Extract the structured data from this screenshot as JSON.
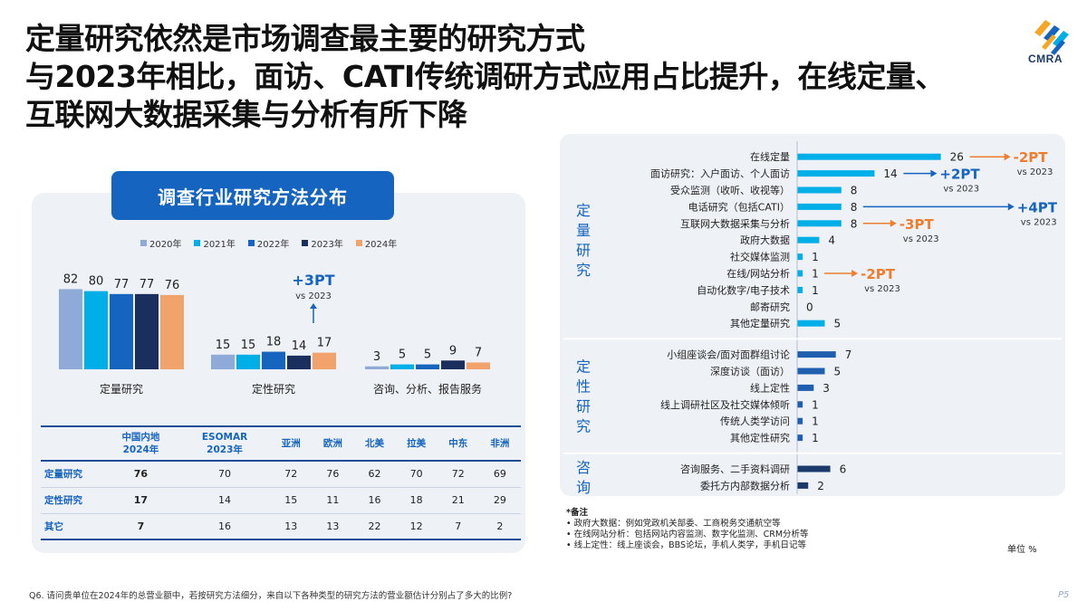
{
  "title": {
    "line1": "定量研究依然是市场调查最主要的研究方式",
    "line2": "与2023年相比，面访、CATI传统调研方式应用占比提升，在线定量、",
    "line3": "互联网大数据采集与分析有所下降"
  },
  "logo": {
    "text": "CMRA"
  },
  "left_banner": "调查行业研究方法分布",
  "colors": {
    "accent": "#1565c0",
    "y2020": "#8fa9d8",
    "y2021": "#00aee8",
    "y2022": "#1565c0",
    "y2023": "#1b2f5e",
    "y2024": "#f2a36b",
    "up": "#1565c0",
    "down": "#ef7d2e",
    "bar_online": "#00aee8",
    "bar_qual": "#1f5fb0",
    "bar_consult": "#1b3a6b"
  },
  "chart_data": [
    {
      "type": "bar",
      "categories": [
        "定量研究",
        "定性研究",
        "咨询、分析、报告服务"
      ],
      "series": [
        {
          "name": "2020年",
          "values": [
            82,
            15,
            3
          ]
        },
        {
          "name": "2021年",
          "values": [
            80,
            15,
            5
          ]
        },
        {
          "name": "2022年",
          "values": [
            77,
            18,
            5
          ]
        },
        {
          "name": "2023年",
          "values": [
            77,
            14,
            9
          ]
        },
        {
          "name": "2024年",
          "values": [
            76,
            17,
            7
          ]
        }
      ],
      "annotations": [
        {
          "category": "定性研究",
          "change": "+3PT",
          "note": "vs 2023",
          "direction": "up"
        }
      ],
      "legend": "top",
      "grid": false
    },
    {
      "type": "bar",
      "orientation": "horizontal",
      "groups": [
        {
          "label": "定量研究",
          "items": [
            {
              "label": "在线定量",
              "value": 26,
              "change": "-2PT",
              "note": "vs 2023",
              "direction": "down"
            },
            {
              "label": "面访研究：入户面访、个人面访",
              "value": 14,
              "change": "+2PT",
              "note": "vs 2023",
              "direction": "up"
            },
            {
              "label": "受众监测（收听、收视等）",
              "value": 8
            },
            {
              "label": "电话研究（包括CATI）",
              "value": 8,
              "change": "+4PT",
              "note": "vs 2023",
              "direction": "up"
            },
            {
              "label": "互联网大数据采集与分析",
              "value": 8,
              "change": "-3PT",
              "note": "vs 2023",
              "direction": "down"
            },
            {
              "label": "政府大数据",
              "value": 4
            },
            {
              "label": "社交媒体监测",
              "value": 1
            },
            {
              "label": "在线/网站分析",
              "value": 1,
              "change": "-2PT",
              "note": "vs 2023",
              "direction": "down"
            },
            {
              "label": "自动化数字/电子技术",
              "value": 1
            },
            {
              "label": "邮寄研究",
              "value": 0
            },
            {
              "label": "其他定量研究",
              "value": 5
            }
          ]
        },
        {
          "label": "定性研究",
          "items": [
            {
              "label": "小组座谈会/面对面群组讨论",
              "value": 7
            },
            {
              "label": "深度访谈（面访）",
              "value": 5
            },
            {
              "label": "线上定性",
              "value": 3
            },
            {
              "label": "线上调研社区及社交媒体倾听",
              "value": 1
            },
            {
              "label": "传统人类学访问",
              "value": 1
            },
            {
              "label": "其他定性研究",
              "value": 1
            }
          ]
        },
        {
          "label": "咨询",
          "items": [
            {
              "label": "咨询服务、二手资料调研",
              "value": 6
            },
            {
              "label": "委托方内部数据分析",
              "value": 2
            }
          ]
        }
      ],
      "unit": "单位 %"
    },
    {
      "type": "table",
      "columns": [
        "",
        "中国内地\n2024年",
        "ESOMAR\n2023年",
        "亚洲",
        "欧洲",
        "北美",
        "拉美",
        "中东",
        "非洲"
      ],
      "rows": [
        {
          "label": "定量研究",
          "values": [
            76,
            70,
            72,
            76,
            62,
            70,
            72,
            69
          ]
        },
        {
          "label": "定性研究",
          "values": [
            17,
            14,
            15,
            11,
            16,
            18,
            21,
            29
          ]
        },
        {
          "label": "其它",
          "values": [
            7,
            16,
            13,
            13,
            22,
            12,
            7,
            2
          ]
        }
      ]
    }
  ],
  "notes": {
    "head": "*备注",
    "items": [
      "政府大数据：例如党政机关部委、工商税务交通航空等",
      "在线网站分析：包括网站内容监测、数字化监测、CRM分析等",
      "线上定性：线上座谈会，BBS论坛，手机人类学，手机日记等"
    ]
  },
  "unit_label": "单位 %",
  "question": "Q6. 请问贵单位在2024年的总营业额中，若按研究方法细分，来自以下各种类型的研究方法的营业额估计分别占了多大的比例?",
  "page_number": "P5"
}
